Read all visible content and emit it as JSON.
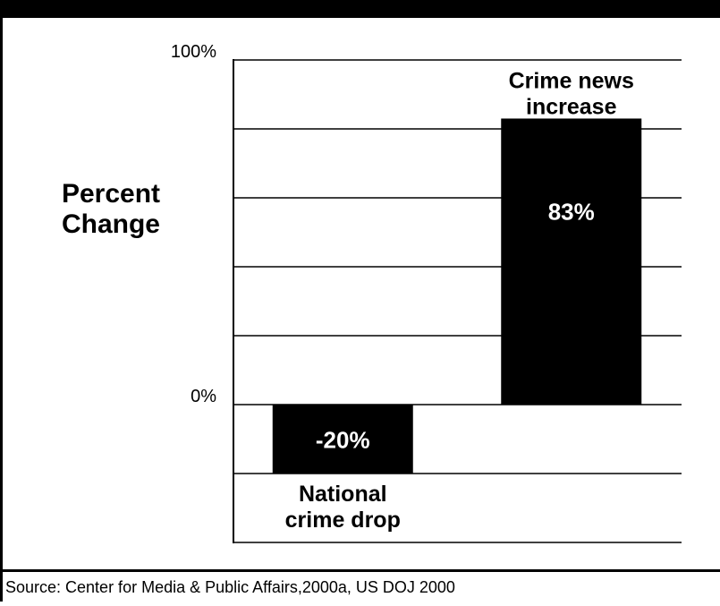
{
  "chart_data": {
    "type": "bar",
    "categories": [
      "National\ncrime drop",
      "Crime news\nincrease"
    ],
    "values": [
      -20,
      83
    ],
    "value_labels": [
      "-20%",
      "83%"
    ],
    "ylabel": "Percent\nChange",
    "yticks": [
      {
        "value": 100,
        "label": "100%"
      },
      {
        "value": 0,
        "label": "0%"
      }
    ],
    "ylim": [
      -40,
      100
    ],
    "grid": true,
    "gridline_step": 20,
    "bar_color": "#000000",
    "value_label_color": "#ffffff"
  },
  "source": "Source:  Center for Media & Public Affairs,2000a, US DOJ 2000"
}
